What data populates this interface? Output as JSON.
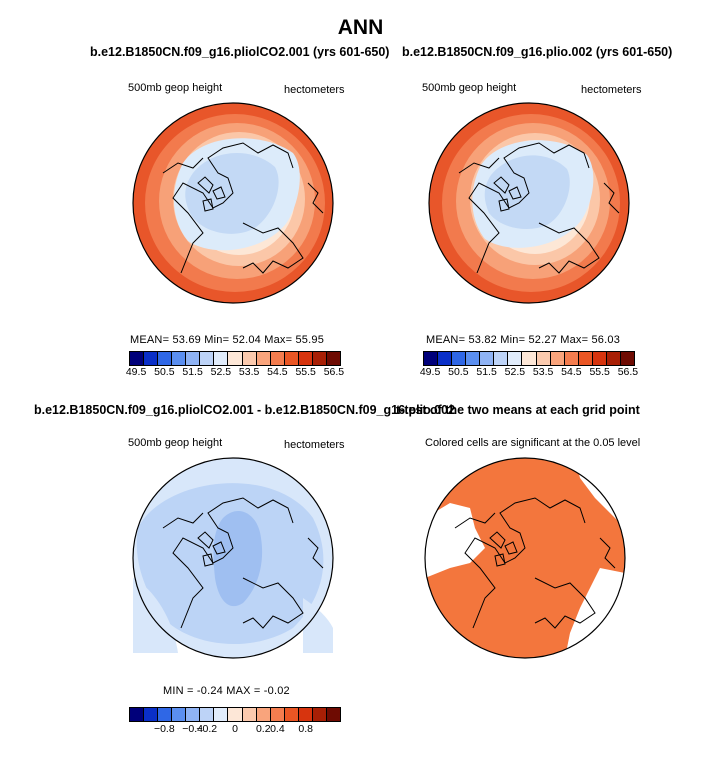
{
  "title": "ANN",
  "panels": {
    "p1": {
      "title": "b.e12.B1850CN.f09_g16.pliolCO2.001 (yrs 601-650)",
      "left_label": "500mb geop height",
      "right_label": "hectometers",
      "stats": "MEAN=   53.69   Min=   52.04   Max=   55.95"
    },
    "p2": {
      "title": "b.e12.B1850CN.f09_g16.plio.002 (yrs 601-650)",
      "left_label": "500mb geop height",
      "right_label": "hectometers",
      "stats": "MEAN=   53.82   Min=   52.27   Max=   56.03"
    },
    "p3": {
      "title": "b.e12.B1850CN.f09_g16.pliolCO2.001 - b.e12.B1850CN.f09_g16.plio.002",
      "left_label": "500mb geop height",
      "right_label": "hectometers",
      "stats": "MIN =  -0.24  MAX =  -0.02"
    },
    "p4": {
      "title": "t-test of the two means at each grid point",
      "right_label": "Colored cells are significant at the 0.05 level"
    }
  },
  "colorbar_colors": [
    "#00007a",
    "#0a2fc8",
    "#2f67e6",
    "#5b8ff0",
    "#8fb3f4",
    "#bdd3f7",
    "#e1ecfb",
    "#fde7d7",
    "#fbcaae",
    "#f9a47c",
    "#f47d4f",
    "#ea5624",
    "#d7340e",
    "#a81f05",
    "#6e0b02"
  ],
  "colorbar1_ticks": [
    "49.5",
    "50.5",
    "51.5",
    "52.5",
    "53.5",
    "54.5",
    "55.5",
    "56.5"
  ],
  "colorbar3_ticks": [
    "−0.8",
    "−0.4",
    "−0.2",
    "0",
    "0.2",
    "0.4",
    "0.8"
  ],
  "map_colors": {
    "ring1": "#e8562a",
    "ring2": "#f27a4d",
    "ring3": "#f7a178",
    "ring4": "#fbc7a8",
    "ring5": "#fde7d6",
    "inner1": "#dcebfa",
    "inner2": "#c3d9f5",
    "diff1": "#d8e7fa",
    "diff2": "#bcd4f6",
    "diff3": "#9fbff1",
    "signif": "#f3763d"
  }
}
